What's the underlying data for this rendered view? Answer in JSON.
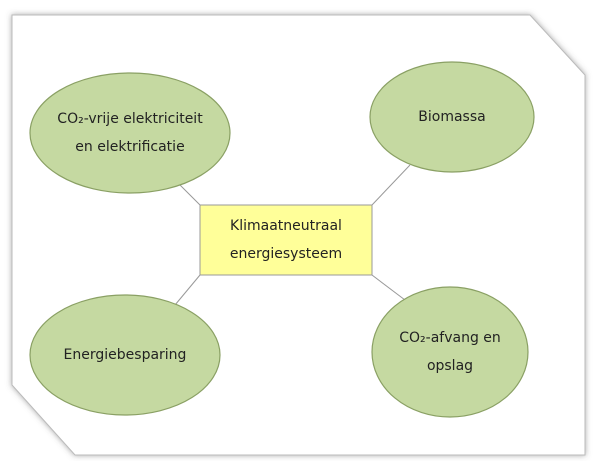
{
  "center": {
    "lines": [
      "Klimaatneutraal",
      "energiesysteem"
    ]
  },
  "nodes": [
    {
      "lines": [
        "CO₂-vrije elektriciteit",
        "en elektrificatie"
      ]
    },
    {
      "lines": [
        "Biomassa"
      ]
    },
    {
      "lines": [
        "Energiebesparing"
      ]
    },
    {
      "lines": [
        "CO₂-afvang en",
        "opslag"
      ]
    }
  ]
}
